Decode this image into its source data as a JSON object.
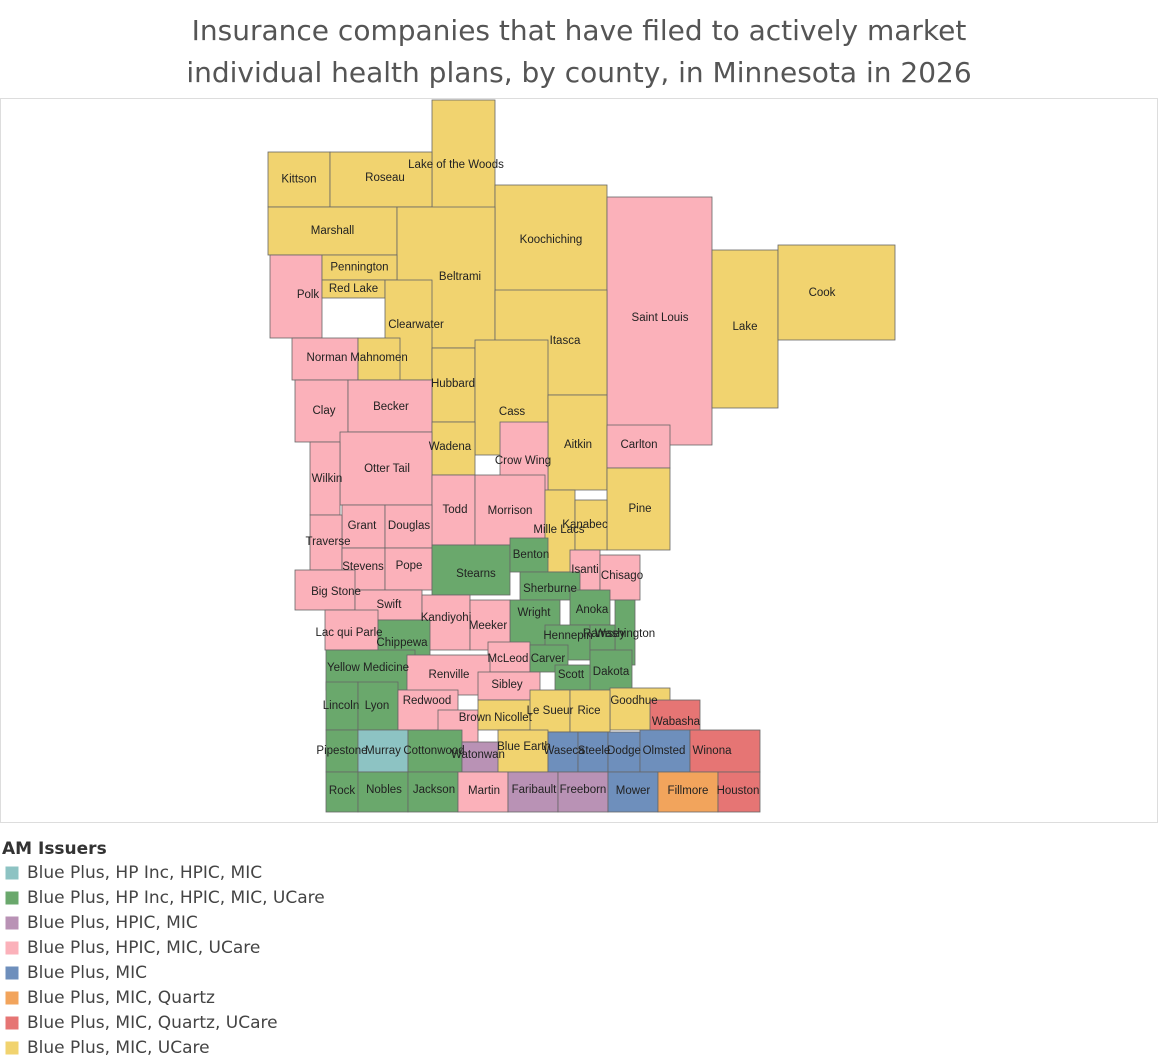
{
  "title": "Insurance companies that have filed to actively market individual health plans, by county, in Minnesota in 2026",
  "legend": {
    "title": "AM Issuers",
    "items": [
      {
        "label": "Blue Plus, HP Inc, HPIC, MIC",
        "color": "#8dc3c3"
      },
      {
        "label": "Blue Plus, HP Inc, HPIC, MIC, UCare",
        "color": "#6aa86c"
      },
      {
        "label": "Blue Plus, HPIC, MIC",
        "color": "#b992b5"
      },
      {
        "label": "Blue Plus, HPIC, MIC, UCare",
        "color": "#fbb1ba"
      },
      {
        "label": "Blue Plus, MIC",
        "color": "#6e8fbc"
      },
      {
        "label": "Blue Plus, MIC, Quartz",
        "color": "#f2a45c"
      },
      {
        "label": "Blue Plus, MIC, Quartz, UCare",
        "color": "#e67574"
      },
      {
        "label": "Blue Plus, MIC, UCare",
        "color": "#f1d36f"
      }
    ]
  },
  "counties": [
    {
      "name": "Lake of the Woods",
      "group": 7
    },
    {
      "name": "Kittson",
      "group": 7
    },
    {
      "name": "Roseau",
      "group": 7
    },
    {
      "name": "Marshall",
      "group": 7
    },
    {
      "name": "Koochiching",
      "group": 7
    },
    {
      "name": "Beltrami",
      "group": 7
    },
    {
      "name": "Polk",
      "group": 3
    },
    {
      "name": "Pennington",
      "group": 7
    },
    {
      "name": "Red Lake",
      "group": 7
    },
    {
      "name": "Clearwater",
      "group": 7
    },
    {
      "name": "Saint Louis",
      "group": 3
    },
    {
      "name": "Lake",
      "group": 7
    },
    {
      "name": "Cook",
      "group": 7
    },
    {
      "name": "Itasca",
      "group": 7
    },
    {
      "name": "Norman",
      "group": 3
    },
    {
      "name": "Mahnomen",
      "group": 7
    },
    {
      "name": "Hubbard",
      "group": 7
    },
    {
      "name": "Clay",
      "group": 3
    },
    {
      "name": "Becker",
      "group": 3
    },
    {
      "name": "Cass",
      "group": 7
    },
    {
      "name": "Aitkin",
      "group": 7
    },
    {
      "name": "Carlton",
      "group": 3
    },
    {
      "name": "Wadena",
      "group": 7
    },
    {
      "name": "Crow Wing",
      "group": 3
    },
    {
      "name": "Otter Tail",
      "group": 3
    },
    {
      "name": "Wilkin",
      "group": 3
    },
    {
      "name": "Pine",
      "group": 7
    },
    {
      "name": "Todd",
      "group": 3
    },
    {
      "name": "Morrison",
      "group": 3
    },
    {
      "name": "Mille Lacs",
      "group": 7
    },
    {
      "name": "Kanabec",
      "group": 7
    },
    {
      "name": "Grant",
      "group": 3
    },
    {
      "name": "Douglas",
      "group": 3
    },
    {
      "name": "Traverse",
      "group": 3
    },
    {
      "name": "Stevens",
      "group": 3
    },
    {
      "name": "Pope",
      "group": 3
    },
    {
      "name": "Big Stone",
      "group": 3
    },
    {
      "name": "Stearns",
      "group": 1
    },
    {
      "name": "Benton",
      "group": 1
    },
    {
      "name": "Isanti",
      "group": 3
    },
    {
      "name": "Chisago",
      "group": 3
    },
    {
      "name": "Sherburne",
      "group": 1
    },
    {
      "name": "Swift",
      "group": 3
    },
    {
      "name": "Wright",
      "group": 1
    },
    {
      "name": "Anoka",
      "group": 1
    },
    {
      "name": "Washington",
      "group": 1
    },
    {
      "name": "Lac qui Parle",
      "group": 3
    },
    {
      "name": "Kandiyohi",
      "group": 3
    },
    {
      "name": "Meeker",
      "group": 3
    },
    {
      "name": "Chippewa",
      "group": 1
    },
    {
      "name": "Hennepin",
      "group": 1
    },
    {
      "name": "Ramsey",
      "group": 1
    },
    {
      "name": "Yellow Medicine",
      "group": 1
    },
    {
      "name": "McLeod",
      "group": 3
    },
    {
      "name": "Carver",
      "group": 1
    },
    {
      "name": "Renville",
      "group": 3
    },
    {
      "name": "Dakota",
      "group": 1
    },
    {
      "name": "Scott",
      "group": 1
    },
    {
      "name": "Sibley",
      "group": 3
    },
    {
      "name": "Goodhue",
      "group": 7
    },
    {
      "name": "Lincoln",
      "group": 1
    },
    {
      "name": "Lyon",
      "group": 1
    },
    {
      "name": "Redwood",
      "group": 3
    },
    {
      "name": "Brown",
      "group": 3
    },
    {
      "name": "Nicollet",
      "group": 7
    },
    {
      "name": "Le Sueur",
      "group": 7
    },
    {
      "name": "Rice",
      "group": 7
    },
    {
      "name": "Wabasha",
      "group": 6
    },
    {
      "name": "Pipestone",
      "group": 1
    },
    {
      "name": "Murray",
      "group": 0
    },
    {
      "name": "Cottonwood",
      "group": 1
    },
    {
      "name": "Watonwan",
      "group": 2
    },
    {
      "name": "Blue Earth",
      "group": 7
    },
    {
      "name": "Waseca",
      "group": 4
    },
    {
      "name": "Steele",
      "group": 4
    },
    {
      "name": "Dodge",
      "group": 4
    },
    {
      "name": "Olmsted",
      "group": 4
    },
    {
      "name": "Winona",
      "group": 6
    },
    {
      "name": "Rock",
      "group": 1
    },
    {
      "name": "Nobles",
      "group": 1
    },
    {
      "name": "Jackson",
      "group": 1
    },
    {
      "name": "Martin",
      "group": 3
    },
    {
      "name": "Faribault",
      "group": 2
    },
    {
      "name": "Freeborn",
      "group": 2
    },
    {
      "name": "Mower",
      "group": 4
    },
    {
      "name": "Fillmore",
      "group": 5
    },
    {
      "name": "Houston",
      "group": 6
    }
  ]
}
